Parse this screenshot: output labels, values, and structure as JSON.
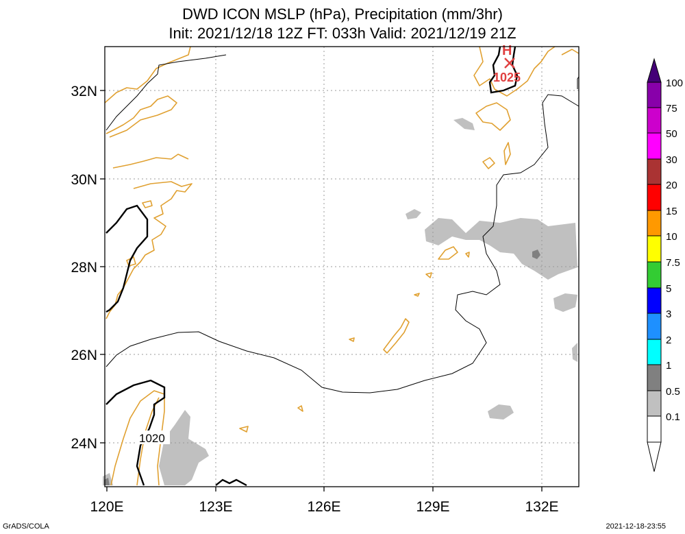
{
  "header": {
    "title_line1": "DWD ICON MSLP (hPa), Precipitation (mm/3hr)",
    "title_line2": "Init: 2021/12/18 12Z  FT: 033h  Valid: 2021/12/19 21Z"
  },
  "map": {
    "lon_range": [
      120,
      133
    ],
    "lat_range": [
      23,
      33
    ],
    "lon_ticks": [
      "120E",
      "123E",
      "126E",
      "129E",
      "132E"
    ],
    "lat_ticks": [
      "24N",
      "26N",
      "28N",
      "30N",
      "32N"
    ],
    "grid": true,
    "coastline_color": "#e0a030",
    "isobar_labels": [
      "1020"
    ],
    "high_marker": {
      "symbol": "H",
      "label": "1025",
      "color": "#e04040"
    }
  },
  "colorbar": {
    "labels": [
      "100",
      "75",
      "50",
      "30",
      "20",
      "15",
      "10",
      "7.5",
      "5",
      "3",
      "2",
      "1",
      "0.5",
      "0.1"
    ],
    "colors": [
      "#8800aa",
      "#cc00cc",
      "#ff00ff",
      "#aa3333",
      "#ff0000",
      "#ff9900",
      "#ffff00",
      "#33cc33",
      "#0000ff",
      "#1e90ff",
      "#00ffff",
      "#808080",
      "#c0c0c0",
      "#ffffff"
    ]
  },
  "footer": {
    "left": "GrADS/COLA",
    "right": "2021-12-18-23:55"
  }
}
